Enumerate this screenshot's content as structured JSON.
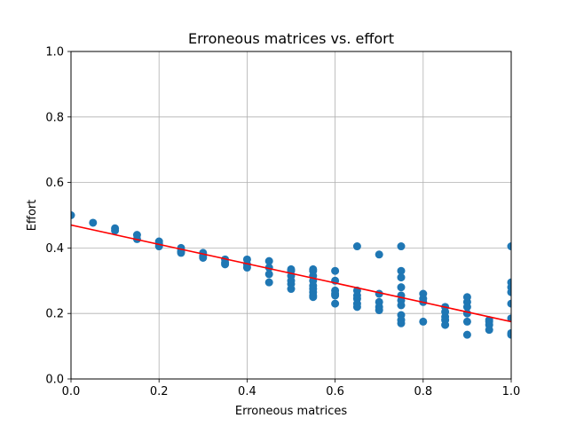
{
  "chart_data": {
    "type": "scatter",
    "title": "Erroneous matrices vs. effort",
    "xlabel": "Erroneous matrices",
    "ylabel": "Effort",
    "xlim": [
      0.0,
      1.0
    ],
    "ylim": [
      0.0,
      1.0
    ],
    "grid": true,
    "x_ticks": [
      "0.0",
      "0.2",
      "0.4",
      "0.6",
      "0.8",
      "1.0"
    ],
    "y_ticks": [
      "0.0",
      "0.2",
      "0.4",
      "0.6",
      "0.8",
      "1.0"
    ],
    "points_color": "#1f77b4",
    "fit_color": "#ff0000",
    "series": [
      {
        "x": [
          0.0,
          0.05,
          0.1,
          0.1,
          0.15,
          0.15,
          0.2,
          0.2,
          0.2,
          0.25,
          0.25,
          0.25,
          0.3,
          0.3,
          0.3,
          0.35,
          0.35,
          0.35,
          0.4,
          0.4,
          0.4,
          0.45,
          0.45,
          0.45,
          0.45,
          0.5,
          0.5,
          0.5,
          0.5,
          0.5,
          0.5,
          0.55,
          0.55,
          0.55,
          0.55,
          0.55,
          0.55,
          0.55,
          0.55,
          0.55,
          0.6,
          0.6,
          0.6,
          0.6,
          0.6,
          0.6,
          0.65,
          0.65,
          0.65,
          0.65,
          0.65,
          0.65,
          0.7,
          0.7,
          0.7,
          0.7,
          0.7,
          0.75,
          0.75,
          0.75,
          0.75,
          0.75,
          0.75,
          0.75,
          0.75,
          0.75,
          0.75,
          0.8,
          0.8,
          0.8,
          0.8,
          0.85,
          0.85,
          0.85,
          0.85,
          0.85,
          0.9,
          0.9,
          0.9,
          0.9,
          0.9,
          0.9,
          0.95,
          0.95,
          0.95,
          0.95,
          1.0,
          1.0,
          1.0,
          1.0,
          1.0,
          1.0,
          1.0,
          1.0
        ],
        "y": [
          0.5,
          0.477,
          0.46,
          0.453,
          0.44,
          0.427,
          0.42,
          0.413,
          0.405,
          0.4,
          0.39,
          0.385,
          0.385,
          0.375,
          0.37,
          0.365,
          0.355,
          0.35,
          0.365,
          0.35,
          0.34,
          0.36,
          0.34,
          0.32,
          0.295,
          0.335,
          0.33,
          0.315,
          0.3,
          0.29,
          0.275,
          0.335,
          0.33,
          0.315,
          0.3,
          0.285,
          0.275,
          0.265,
          0.255,
          0.25,
          0.33,
          0.3,
          0.27,
          0.26,
          0.255,
          0.23,
          0.405,
          0.27,
          0.255,
          0.245,
          0.23,
          0.22,
          0.38,
          0.26,
          0.235,
          0.22,
          0.21,
          0.405,
          0.33,
          0.31,
          0.28,
          0.255,
          0.24,
          0.225,
          0.195,
          0.18,
          0.17,
          0.26,
          0.245,
          0.235,
          0.175,
          0.22,
          0.205,
          0.19,
          0.18,
          0.165,
          0.25,
          0.235,
          0.22,
          0.2,
          0.175,
          0.135,
          0.18,
          0.175,
          0.165,
          0.15,
          0.405,
          0.295,
          0.28,
          0.265,
          0.23,
          0.185,
          0.14,
          0.135
        ]
      }
    ],
    "fit_line": {
      "x": [
        0.0,
        1.0
      ],
      "y": [
        0.47,
        0.175
      ]
    }
  }
}
